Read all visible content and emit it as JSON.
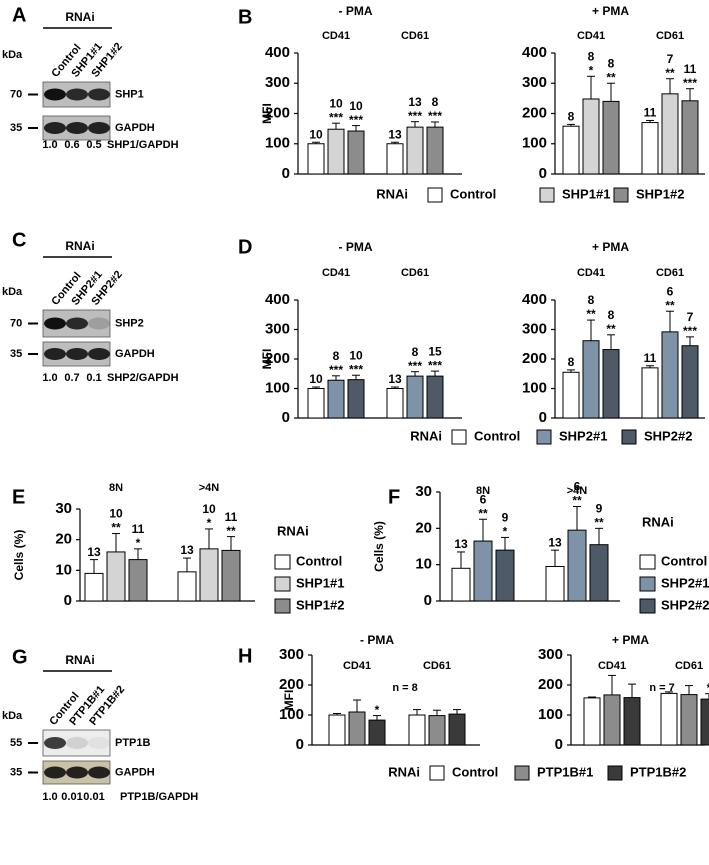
{
  "blots": [
    {
      "panel": "A",
      "header": "RNAi",
      "unit": "kDa",
      "lanes": [
        "Control",
        "SHP1#1",
        "SHP1#2"
      ],
      "rows": [
        {
          "label": "SHP1",
          "marker": "70"
        },
        {
          "label": "GAPDH",
          "marker": "35"
        }
      ],
      "ratios": [
        "1.0",
        "0.6",
        "0.5"
      ],
      "ratio_label": "SHP1/GAPDH"
    },
    {
      "panel": "C",
      "header": "RNAi",
      "unit": "kDa",
      "lanes": [
        "Control",
        "SHP2#1",
        "SHP2#2"
      ],
      "rows": [
        {
          "label": "SHP2",
          "marker": "70"
        },
        {
          "label": "GAPDH",
          "marker": "35"
        }
      ],
      "ratios": [
        "1.0",
        "0.7",
        "0.1"
      ],
      "ratio_label": "SHP2/GAPDH"
    },
    {
      "panel": "G",
      "header": "RNAi",
      "unit": "kDa",
      "lanes": [
        "Control",
        "PTP1B#1",
        "PTP1B#2"
      ],
      "rows": [
        {
          "label": "PTP1B",
          "marker": "55"
        },
        {
          "label": "GAPDH",
          "marker": "35"
        }
      ],
      "ratios": [
        "1.0",
        "0.01",
        "0.01"
      ],
      "ratio_label": "PTP1B/GAPDH"
    }
  ],
  "chart_data": [
    {
      "panel": "B",
      "type": "bar",
      "title": "- PMA",
      "ylabel": "MFI",
      "categories": [
        "CD41",
        "CD61"
      ],
      "ylim": [
        0,
        400
      ],
      "yticks": [
        0,
        100,
        200,
        300,
        400
      ],
      "series": [
        {
          "name": "Control",
          "color": "#ffffff",
          "values": [
            100,
            100
          ],
          "errors": [
            5,
            5
          ],
          "n": [
            10,
            13
          ]
        },
        {
          "name": "SHP1#1",
          "color": "#d4d4d4",
          "values": [
            148,
            155
          ],
          "errors": [
            20,
            18
          ],
          "n": [
            10,
            13
          ],
          "significance": [
            "***",
            "***"
          ]
        },
        {
          "name": "SHP1#2",
          "color": "#8c8c8c",
          "values": [
            142,
            155
          ],
          "errors": [
            18,
            17
          ],
          "n": [
            10,
            8
          ],
          "significance": [
            "***",
            "***"
          ]
        }
      ]
    },
    {
      "type": "bar",
      "title": "+ PMA",
      "categories": [
        "CD41",
        "CD61"
      ],
      "ylim": [
        0,
        400
      ],
      "yticks": [
        0,
        100,
        200,
        300,
        400
      ],
      "legend": "bottom",
      "legend_title": "RNAi",
      "series": [
        {
          "name": "Control",
          "color": "#ffffff",
          "values": [
            158,
            170
          ],
          "errors": [
            6,
            7
          ],
          "n": [
            8,
            11
          ]
        },
        {
          "name": "SHP1#1",
          "color": "#d4d4d4",
          "values": [
            248,
            265
          ],
          "errors": [
            75,
            50
          ],
          "n": [
            8,
            7
          ],
          "significance": [
            "*",
            "**"
          ]
        },
        {
          "name": "SHP1#2",
          "color": "#8c8c8c",
          "values": [
            240,
            242
          ],
          "errors": [
            60,
            40
          ],
          "n": [
            8,
            11
          ],
          "significance": [
            "**",
            "***"
          ]
        }
      ]
    },
    {
      "panel": "D",
      "type": "bar",
      "title": "- PMA",
      "ylabel": "MFI",
      "categories": [
        "CD41",
        "CD61"
      ],
      "ylim": [
        0,
        400
      ],
      "yticks": [
        0,
        100,
        200,
        300,
        400
      ],
      "series": [
        {
          "name": "Control",
          "color": "#ffffff",
          "values": [
            100,
            100
          ],
          "errors": [
            5,
            5
          ],
          "n": [
            10,
            13
          ]
        },
        {
          "name": "SHP2#1",
          "color": "#7f93a8",
          "values": [
            128,
            142
          ],
          "errors": [
            15,
            15
          ],
          "n": [
            8,
            8
          ],
          "significance": [
            "***",
            "***"
          ]
        },
        {
          "name": "SHP2#2",
          "color": "#4e5a68",
          "values": [
            130,
            142
          ],
          "errors": [
            15,
            17
          ],
          "n": [
            10,
            15
          ],
          "significance": [
            "***",
            "***"
          ]
        }
      ]
    },
    {
      "type": "bar",
      "title": "+ PMA",
      "categories": [
        "CD41",
        "CD61"
      ],
      "ylim": [
        0,
        400
      ],
      "yticks": [
        0,
        100,
        200,
        300,
        400
      ],
      "legend": "bottom",
      "legend_title": "RNAi",
      "series": [
        {
          "name": "Control",
          "color": "#ffffff",
          "values": [
            155,
            170
          ],
          "errors": [
            8,
            7
          ],
          "n": [
            8,
            11
          ]
        },
        {
          "name": "SHP2#1",
          "color": "#7f93a8",
          "values": [
            262,
            292
          ],
          "errors": [
            70,
            70
          ],
          "n": [
            8,
            6
          ],
          "significance": [
            "**",
            "**"
          ]
        },
        {
          "name": "SHP2#2",
          "color": "#4e5a68",
          "values": [
            232,
            245
          ],
          "errors": [
            50,
            30
          ],
          "n": [
            8,
            7
          ],
          "significance": [
            "**",
            "***"
          ]
        }
      ]
    },
    {
      "panel": "E",
      "type": "bar",
      "ylabel": "Cells (%)",
      "categories": [
        "8N",
        ">4N"
      ],
      "ylim": [
        0,
        30
      ],
      "yticks": [
        0,
        10,
        20,
        30
      ],
      "legend": "right",
      "legend_title": "RNAi",
      "series": [
        {
          "name": "Control",
          "color": "#ffffff",
          "values": [
            9,
            9.5
          ],
          "errors": [
            4.5,
            4.5
          ],
          "n": [
            13,
            13
          ]
        },
        {
          "name": "SHP1#1",
          "color": "#d4d4d4",
          "values": [
            16,
            17
          ],
          "errors": [
            6,
            6.5
          ],
          "n": [
            10,
            10
          ],
          "significance": [
            "**",
            "*"
          ]
        },
        {
          "name": "SHP1#2",
          "color": "#8c8c8c",
          "values": [
            13.5,
            16.5
          ],
          "errors": [
            3.5,
            4.5
          ],
          "n": [
            11,
            11
          ],
          "significance": [
            "*",
            "**"
          ]
        }
      ]
    },
    {
      "panel": "F",
      "type": "bar",
      "ylabel": "Cells (%)",
      "categories": [
        "8N",
        ">4N"
      ],
      "ylim": [
        0,
        30
      ],
      "yticks": [
        0,
        10,
        20,
        30
      ],
      "legend": "right",
      "legend_title": "RNAi",
      "series": [
        {
          "name": "Control",
          "color": "#ffffff",
          "values": [
            9,
            9.5
          ],
          "errors": [
            4.5,
            4.5
          ],
          "n": [
            13,
            13
          ]
        },
        {
          "name": "SHP2#1",
          "color": "#7f93a8",
          "values": [
            16.5,
            19.5
          ],
          "errors": [
            6,
            6.5
          ],
          "n": [
            6,
            6
          ],
          "significance": [
            "**",
            "**"
          ]
        },
        {
          "name": "SHP2#2",
          "color": "#4e5a68",
          "values": [
            14,
            15.5
          ],
          "errors": [
            3.5,
            4.5
          ],
          "n": [
            9,
            9
          ],
          "significance": [
            "*",
            "**"
          ]
        }
      ]
    },
    {
      "panel": "H",
      "type": "bar",
      "title": "- PMA",
      "ylabel": "MFI",
      "categories": [
        "CD41",
        "CD61"
      ],
      "annotation": "n = 8",
      "ylim": [
        0,
        300
      ],
      "yticks": [
        0,
        100,
        200,
        300
      ],
      "series": [
        {
          "name": "Control",
          "color": "#ffffff",
          "values": [
            100,
            100
          ],
          "errors": [
            5,
            18
          ]
        },
        {
          "name": "PTP1B#1",
          "color": "#8c8c8c",
          "values": [
            110,
            98
          ],
          "errors": [
            40,
            18
          ]
        },
        {
          "name": "PTP1B#2",
          "color": "#3a3a3a",
          "values": [
            83,
            103
          ],
          "errors": [
            15,
            15
          ],
          "significance": [
            "*",
            null
          ]
        }
      ]
    },
    {
      "type": "bar",
      "title": "+ PMA",
      "categories": [
        "CD41",
        "CD61"
      ],
      "annotation": "n = 7",
      "ylim": [
        0,
        300
      ],
      "yticks": [
        0,
        100,
        200,
        300
      ],
      "legend": "bottom",
      "legend_title": "RNAi",
      "series": [
        {
          "name": "Control",
          "color": "#ffffff",
          "values": [
            157,
            172
          ],
          "errors": [
            3,
            5
          ]
        },
        {
          "name": "PTP1B#1",
          "color": "#8c8c8c",
          "values": [
            167,
            168
          ],
          "errors": [
            65,
            30
          ]
        },
        {
          "name": "PTP1B#2",
          "color": "#3a3a3a",
          "values": [
            158,
            153
          ],
          "errors": [
            45,
            18
          ],
          "significance": [
            null,
            "*"
          ]
        }
      ]
    }
  ]
}
